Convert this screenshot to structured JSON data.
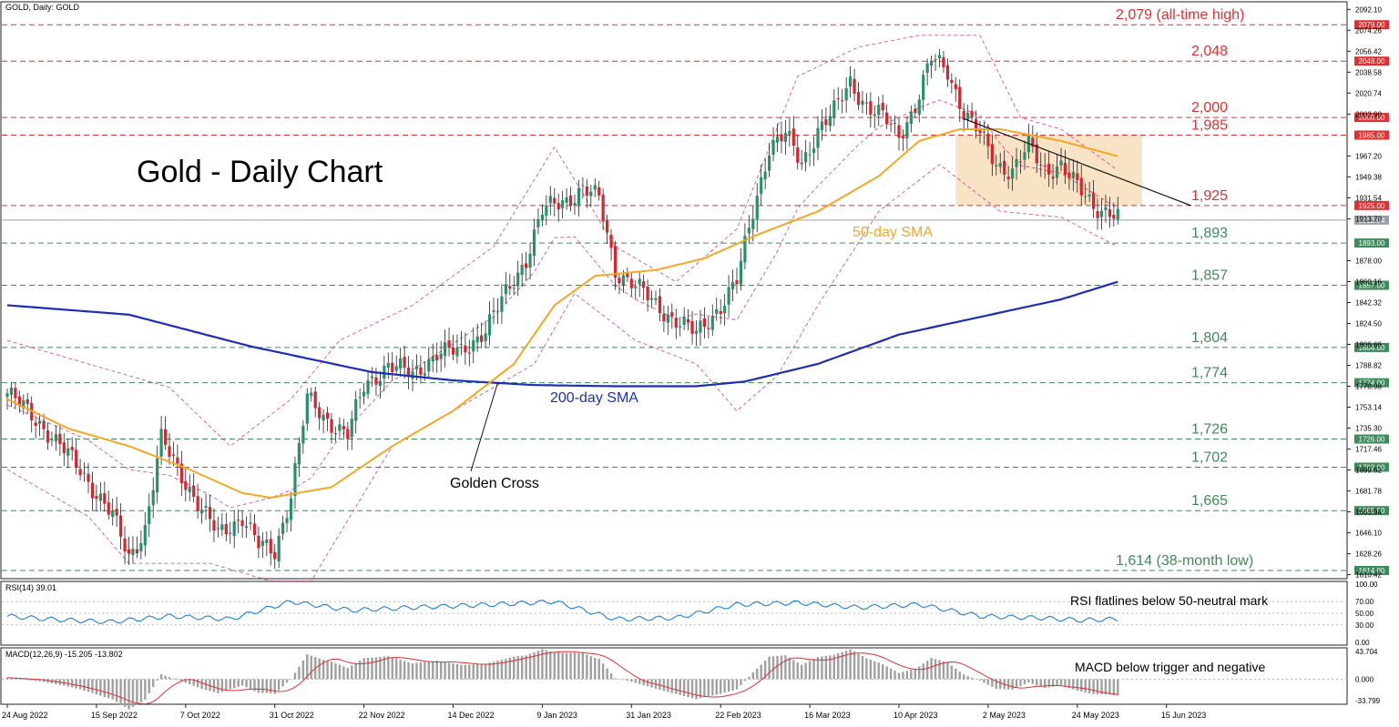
{
  "header": {
    "symbol_text": "GOLD, Daily:  GOLD"
  },
  "chart_title": "Gold - Daily Chart",
  "colors": {
    "bull": "#26916a",
    "bear": "#e0202b",
    "sma50": "#f5a623",
    "sma200": "#1c2fb4",
    "bollinger": "#c8287a",
    "resistance": "#e03030",
    "support": "#3f8a5c",
    "rsi": "#1e7fd8",
    "macd_signal": "#e03030",
    "macd_hist": "#a0a0a0",
    "current": "#9aa0a8"
  },
  "chart_data": {
    "type": "candlestick",
    "x_ticks": [
      "24 Aug 2022",
      "15 Sep 2022",
      "7 Oct 2022",
      "31 Oct 2022",
      "22 Nov 2022",
      "14 Dec 2022",
      "9 Jan 2023",
      "31 Jan 2023",
      "22 Feb 2023",
      "16 Mar 2023",
      "10 Apr 2023",
      "2 May 2023",
      "24 May 2023",
      "15 Jun 2023"
    ],
    "y_ticks": [
      "2092.10",
      "2074.26",
      "2056.42",
      "2038.58",
      "2020.74",
      "2002.90",
      "1967.20",
      "1949.38",
      "1931.54",
      "1913.70",
      "1878.00",
      "1860.16",
      "1842.32",
      "1824.50",
      "1806.66",
      "1788.82",
      "1770.98",
      "1753.14",
      "1735.30",
      "1717.46",
      "1699.62",
      "1681.78",
      "1663.94",
      "1646.10",
      "1628.26",
      "1610.42"
    ],
    "y_range": [
      1607,
      2097
    ],
    "current_price": {
      "label": "1912.54",
      "value": 1912.54
    },
    "levels": [
      {
        "value": 2079,
        "label": "2,079 (all-time high)",
        "tag": "2079.00",
        "kind": "resistance"
      },
      {
        "value": 2048,
        "label": "2,048",
        "tag": "2048.00",
        "kind": "resistance"
      },
      {
        "value": 2000,
        "label": "2,000",
        "tag": "2000.00",
        "kind": "resistance"
      },
      {
        "value": 1985,
        "label": "1,985",
        "tag": "1985.00",
        "kind": "resistance"
      },
      {
        "value": 1925,
        "label": "1,925",
        "tag": "1925.00",
        "kind": "resistance"
      },
      {
        "value": 1893,
        "label": "1,893",
        "tag": "1893.00",
        "kind": "support"
      },
      {
        "value": 1857,
        "label": "1,857",
        "tag": "1857.00",
        "kind": "support"
      },
      {
        "value": 1804,
        "label": "1,804",
        "tag": "1804.00",
        "kind": "support"
      },
      {
        "value": 1774,
        "label": "1,774",
        "tag": "1774.00",
        "kind": "support"
      },
      {
        "value": 1726,
        "label": "1,726",
        "tag": "1726.00",
        "kind": "support"
      },
      {
        "value": 1702,
        "label": "1,702",
        "tag": "1702.00",
        "kind": "support"
      },
      {
        "value": 1665,
        "label": "1,665",
        "tag": "1665.00",
        "kind": "support"
      },
      {
        "value": 1614,
        "label": "1,614 (38-month low)",
        "tag": "1614.00",
        "kind": "support"
      }
    ],
    "price_keyframes": [
      [
        0,
        1765
      ],
      [
        8,
        1740
      ],
      [
        18,
        1700
      ],
      [
        26,
        1660
      ],
      [
        30,
        1625
      ],
      [
        34,
        1650
      ],
      [
        38,
        1725
      ],
      [
        44,
        1690
      ],
      [
        48,
        1665
      ],
      [
        52,
        1645
      ],
      [
        58,
        1660
      ],
      [
        62,
        1635
      ],
      [
        66,
        1630
      ],
      [
        70,
        1680
      ],
      [
        74,
        1760
      ],
      [
        78,
        1745
      ],
      [
        84,
        1730
      ],
      [
        88,
        1770
      ],
      [
        94,
        1790
      ],
      [
        100,
        1780
      ],
      [
        106,
        1800
      ],
      [
        112,
        1800
      ],
      [
        118,
        1820
      ],
      [
        124,
        1855
      ],
      [
        128,
        1880
      ],
      [
        132,
        1920
      ],
      [
        138,
        1930
      ],
      [
        142,
        1940
      ],
      [
        146,
        1930
      ],
      [
        150,
        1870
      ],
      [
        154,
        1860
      ],
      [
        160,
        1840
      ],
      [
        166,
        1825
      ],
      [
        170,
        1815
      ],
      [
        176,
        1840
      ],
      [
        180,
        1860
      ],
      [
        184,
        1920
      ],
      [
        188,
        1975
      ],
      [
        192,
        1985
      ],
      [
        196,
        1960
      ],
      [
        200,
        1990
      ],
      [
        204,
        2005
      ],
      [
        208,
        2030
      ],
      [
        212,
        2010
      ],
      [
        216,
        2000
      ],
      [
        220,
        1985
      ],
      [
        224,
        2010
      ],
      [
        228,
        2050
      ],
      [
        232,
        2040
      ],
      [
        236,
        2005
      ],
      [
        240,
        1985
      ],
      [
        244,
        1960
      ],
      [
        248,
        1955
      ],
      [
        252,
        1975
      ],
      [
        256,
        1955
      ],
      [
        260,
        1960
      ],
      [
        264,
        1940
      ],
      [
        268,
        1925
      ],
      [
        272,
        1920
      ],
      [
        274,
        1915
      ]
    ],
    "sma50_keyframes": [
      [
        0,
        1760
      ],
      [
        15,
        1735
      ],
      [
        30,
        1720
      ],
      [
        45,
        1700
      ],
      [
        58,
        1680
      ],
      [
        65,
        1676
      ],
      [
        80,
        1685
      ],
      [
        95,
        1720
      ],
      [
        110,
        1750
      ],
      [
        125,
        1790
      ],
      [
        135,
        1840
      ],
      [
        145,
        1865
      ],
      [
        160,
        1870
      ],
      [
        172,
        1880
      ],
      [
        185,
        1900
      ],
      [
        200,
        1920
      ],
      [
        215,
        1950
      ],
      [
        225,
        1980
      ],
      [
        235,
        1990
      ],
      [
        245,
        1990
      ],
      [
        260,
        1980
      ],
      [
        274,
        1967
      ]
    ],
    "sma200_keyframes": [
      [
        0,
        1840
      ],
      [
        30,
        1832
      ],
      [
        60,
        1805
      ],
      [
        90,
        1783
      ],
      [
        110,
        1776
      ],
      [
        130,
        1772
      ],
      [
        150,
        1771
      ],
      [
        170,
        1771
      ],
      [
        182,
        1775
      ],
      [
        200,
        1790
      ],
      [
        220,
        1815
      ],
      [
        240,
        1830
      ],
      [
        260,
        1845
      ],
      [
        274,
        1860
      ]
    ],
    "bollinger_keyframes": {
      "upper": [
        [
          0,
          1810
        ],
        [
          20,
          1790
        ],
        [
          40,
          1770
        ],
        [
          55,
          1720
        ],
        [
          70,
          1760
        ],
        [
          82,
          1810
        ],
        [
          100,
          1840
        ],
        [
          120,
          1890
        ],
        [
          135,
          1975
        ],
        [
          150,
          1890
        ],
        [
          165,
          1860
        ],
        [
          180,
          1905
        ],
        [
          195,
          2035
        ],
        [
          210,
          2060
        ],
        [
          225,
          2070
        ],
        [
          240,
          2070
        ],
        [
          250,
          2000
        ],
        [
          260,
          1990
        ],
        [
          274,
          1955
        ]
      ],
      "lower": [
        [
          0,
          1700
        ],
        [
          20,
          1660
        ],
        [
          30,
          1620
        ],
        [
          50,
          1620
        ],
        [
          65,
          1605
        ],
        [
          75,
          1605
        ],
        [
          95,
          1720
        ],
        [
          115,
          1760
        ],
        [
          130,
          1790
        ],
        [
          140,
          1850
        ],
        [
          155,
          1810
        ],
        [
          170,
          1790
        ],
        [
          180,
          1750
        ],
        [
          190,
          1780
        ],
        [
          200,
          1840
        ],
        [
          215,
          1920
        ],
        [
          230,
          1960
        ],
        [
          245,
          1920
        ],
        [
          260,
          1915
        ],
        [
          274,
          1890
        ]
      ]
    },
    "golden_cross": {
      "label": "Golden Cross",
      "index": 121,
      "value": 1774
    },
    "sma50_label": "50-day SMA",
    "sma200_label": "200-day SMA",
    "consolidation_box": {
      "x_start": 234,
      "x_end": 280,
      "y_top": 1985,
      "y_bottom": 1925
    },
    "trendline": {
      "from": [
        236,
        1999
      ],
      "to": [
        292,
        1925
      ]
    }
  },
  "rsi_panel": {
    "header": "RSI(14) 39.01",
    "note": "RSI flatlines below 50-neutral mark",
    "y_ticks": [
      "100.00",
      "70.00",
      "50.00",
      "30.00",
      "0.00"
    ],
    "keyframes": [
      [
        0,
        45
      ],
      [
        10,
        40
      ],
      [
        25,
        35
      ],
      [
        40,
        45
      ],
      [
        55,
        40
      ],
      [
        70,
        70
      ],
      [
        85,
        55
      ],
      [
        100,
        60
      ],
      [
        120,
        65
      ],
      [
        135,
        70
      ],
      [
        150,
        40
      ],
      [
        165,
        42
      ],
      [
        180,
        65
      ],
      [
        195,
        68
      ],
      [
        210,
        60
      ],
      [
        225,
        65
      ],
      [
        240,
        45
      ],
      [
        255,
        42
      ],
      [
        265,
        38
      ],
      [
        274,
        40
      ]
    ]
  },
  "macd_panel": {
    "header": "MACD(12,26,9) -15.205 -13.802",
    "note": "MACD below trigger and negative",
    "y_ticks": [
      "43.704",
      "0.000",
      "-33.799"
    ]
  }
}
